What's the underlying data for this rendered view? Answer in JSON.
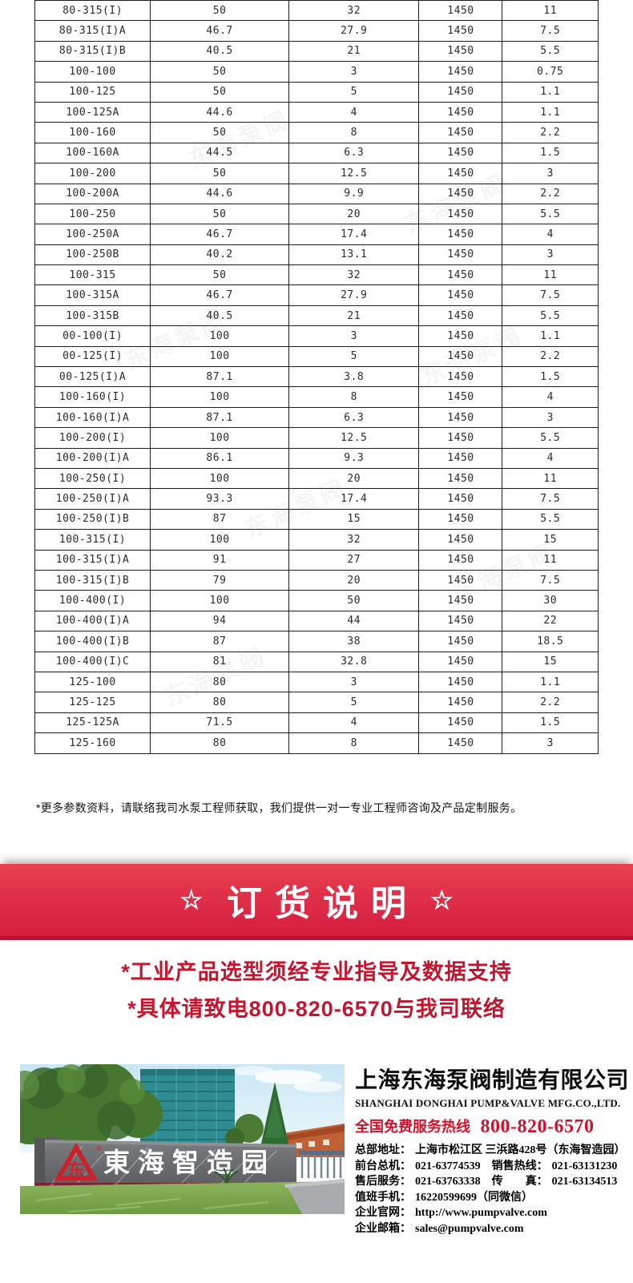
{
  "table": {
    "rows": [
      [
        "80-315(I)",
        "50",
        "32",
        "1450",
        "11"
      ],
      [
        "80-315(I)A",
        "46.7",
        "27.9",
        "1450",
        "7.5"
      ],
      [
        "80-315(I)B",
        "40.5",
        "21",
        "1450",
        "5.5"
      ],
      [
        "100-100",
        "50",
        "3",
        "1450",
        "0.75"
      ],
      [
        "100-125",
        "50",
        "5",
        "1450",
        "1.1"
      ],
      [
        "100-125A",
        "44.6",
        "4",
        "1450",
        "1.1"
      ],
      [
        "100-160",
        "50",
        "8",
        "1450",
        "2.2"
      ],
      [
        "100-160A",
        "44.5",
        "6.3",
        "1450",
        "1.5"
      ],
      [
        "100-200",
        "50",
        "12.5",
        "1450",
        "3"
      ],
      [
        "100-200A",
        "44.6",
        "9.9",
        "1450",
        "2.2"
      ],
      [
        "100-250",
        "50",
        "20",
        "1450",
        "5.5"
      ],
      [
        "100-250A",
        "46.7",
        "17.4",
        "1450",
        "4"
      ],
      [
        "100-250B",
        "40.2",
        "13.1",
        "1450",
        "3"
      ],
      [
        "100-315",
        "50",
        "32",
        "1450",
        "11"
      ],
      [
        "100-315A",
        "46.7",
        "27.9",
        "1450",
        "7.5"
      ],
      [
        "100-315B",
        "40.5",
        "21",
        "1450",
        "5.5"
      ],
      [
        "00-100(I)",
        "100",
        "3",
        "1450",
        "1.1"
      ],
      [
        "00-125(I)",
        "100",
        "5",
        "1450",
        "2.2"
      ],
      [
        "00-125(I)A",
        "87.1",
        "3.8",
        "1450",
        "1.5"
      ],
      [
        "100-160(I)",
        "100",
        "8",
        "1450",
        "4"
      ],
      [
        "100-160(I)A",
        "87.1",
        "6.3",
        "1450",
        "3"
      ],
      [
        "100-200(I)",
        "100",
        "12.5",
        "1450",
        "5.5"
      ],
      [
        "100-200(I)A",
        "86.1",
        "9.3",
        "1450",
        "4"
      ],
      [
        "100-250(I)",
        "100",
        "20",
        "1450",
        "11"
      ],
      [
        "100-250(I)A",
        "93.3",
        "17.4",
        "1450",
        "7.5"
      ],
      [
        "100-250(I)B",
        "87",
        "15",
        "1450",
        "5.5"
      ],
      [
        "100-315(I)",
        "100",
        "32",
        "1450",
        "15"
      ],
      [
        "100-315(I)A",
        "91",
        "27",
        "1450",
        "11"
      ],
      [
        "100-315(I)B",
        "79",
        "20",
        "1450",
        "7.5"
      ],
      [
        "100-400(I)",
        "100",
        "50",
        "1450",
        "30"
      ],
      [
        "100-400(I)A",
        "94",
        "44",
        "1450",
        "22"
      ],
      [
        "100-400(I)B",
        "87",
        "38",
        "1450",
        "18.5"
      ],
      [
        "100-400(I)C",
        "81",
        "32.8",
        "1450",
        "15"
      ],
      [
        "125-100",
        "80",
        "3",
        "1450",
        "1.1"
      ],
      [
        "125-125",
        "80",
        "5",
        "1450",
        "2.2"
      ],
      [
        "125-125A",
        "71.5",
        "4",
        "1450",
        "1.5"
      ],
      [
        "125-160",
        "80",
        "8",
        "1450",
        "3"
      ]
    ]
  },
  "note": {
    "text": "*更多参数资料，请联络我司水泵工程师获取，我们提供一对一专业工程师咨询及产品定制服务。"
  },
  "banner": {
    "star": "☆",
    "title": "订货说明"
  },
  "notices": {
    "line1": "*工业产品选型须经专业指导及数据支持",
    "line2": "*具体请致电800-820-6570与我司联络"
  },
  "company": {
    "name_cn": "上海东海泵阀制造有限公司",
    "name_en": "SHANGHAI DONGHAI PUMP&VALVE MFG.CO.,LTD.",
    "hotline_label": "全国免费服务热线",
    "hotline_number": "800-820-6570",
    "contacts": [
      [
        {
          "label": "总部地址：",
          "value": "上海市松江区 三浜路428号（东海智造园）"
        }
      ],
      [
        {
          "label": "前台总机：",
          "value": "021-63774539"
        },
        {
          "label": "销售热线：",
          "value": "021-63131230"
        }
      ],
      [
        {
          "label": "售后服务：",
          "value": "021-63763338"
        },
        {
          "label": "传　　真：",
          "value": "021-63134513"
        }
      ],
      [
        {
          "label": "值班手机：",
          "value": "16220599699（同微信）"
        }
      ],
      [
        {
          "label": "企业官网：",
          "value": "http://www.pumpvalve.com"
        }
      ],
      [
        {
          "label": "企业邮箱：",
          "value": "sales@pumpvalve.com"
        }
      ]
    ]
  },
  "photo": {
    "sign_text": "東海智造园",
    "logo_char": "东",
    "reg_mark": "®"
  },
  "watermark": {
    "text": "东海泵阀"
  },
  "colors": {
    "accent_red": "#c4152e",
    "banner_red": "#de2c46",
    "banner_dark": "#bc0f35"
  }
}
